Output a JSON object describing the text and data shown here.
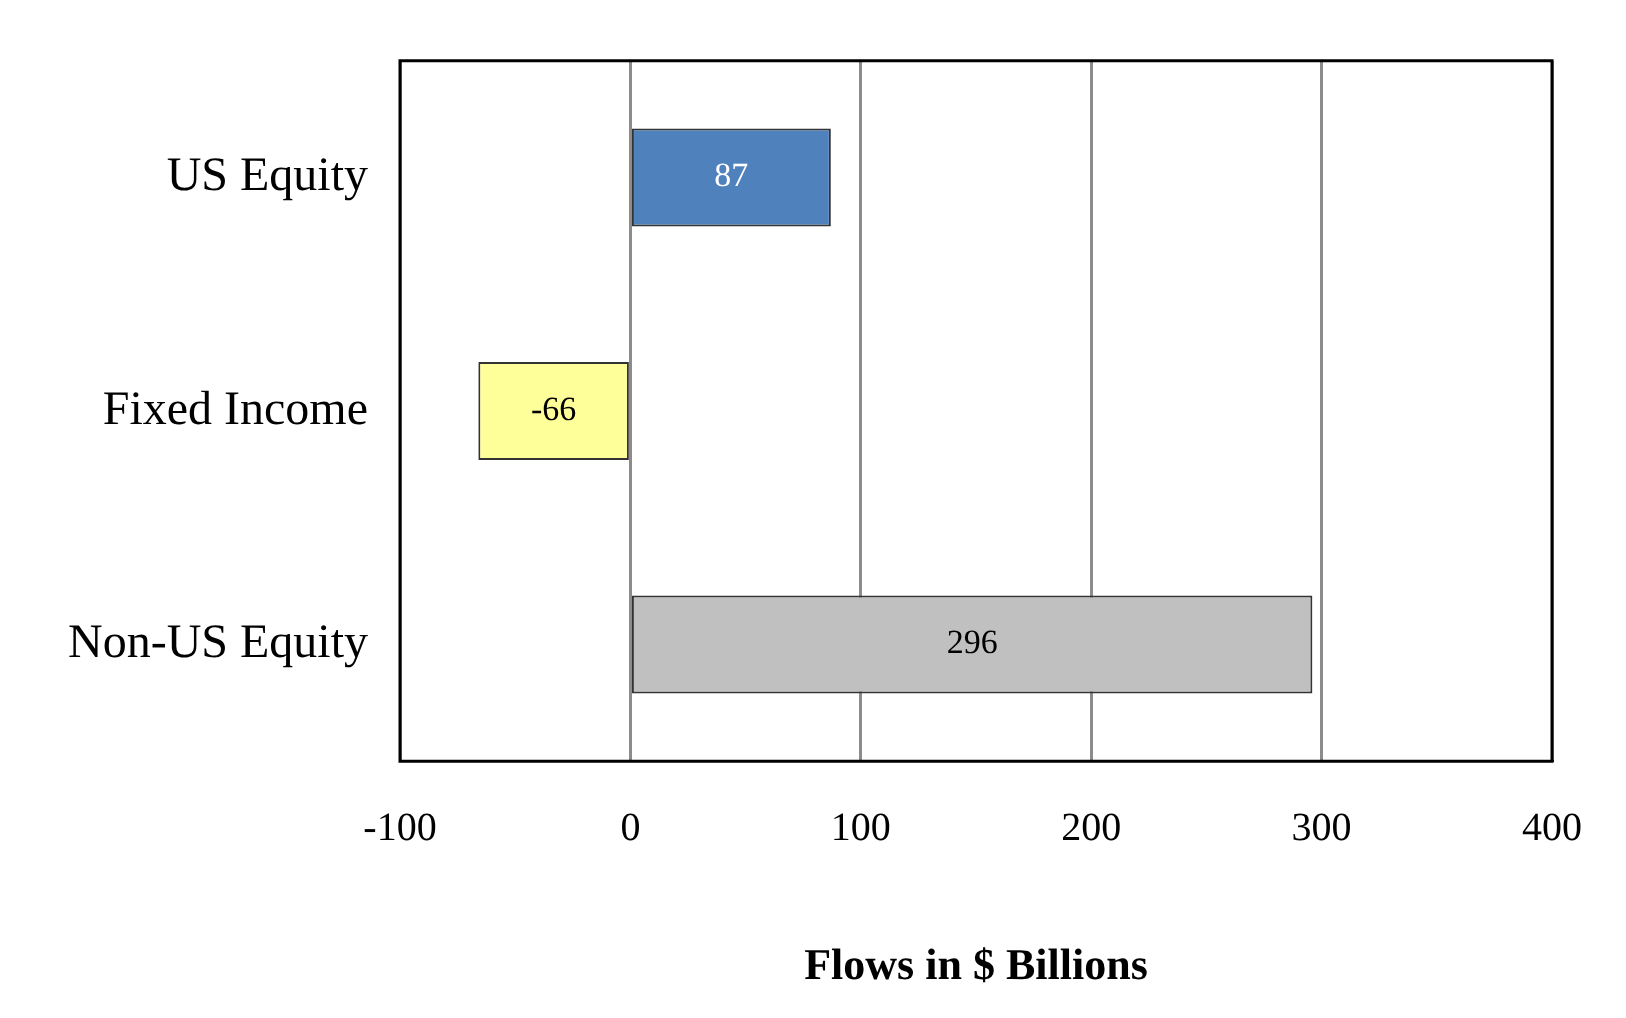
{
  "chart_data": {
    "type": "bar",
    "orientation": "horizontal",
    "xlabel": "Flows in $ Billions",
    "categories": [
      "US Equity",
      "Fixed Income",
      "Non-US Equity"
    ],
    "values": [
      87,
      -66,
      296
    ],
    "colors": [
      "#4f81bd",
      "#ffff99",
      "#c0c0c0"
    ],
    "xlim": [
      -100,
      400
    ],
    "xticks": [
      -100,
      0,
      100,
      200,
      300,
      400
    ],
    "grid": "x",
    "legend": false,
    "data_labels": true
  }
}
